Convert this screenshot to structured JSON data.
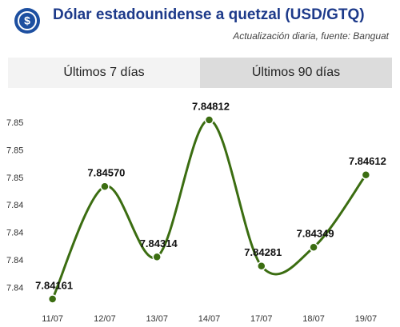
{
  "header": {
    "title": "Dólar estadounidense a quetzal (USD/GTQ)",
    "subtitle": "Actualización diaria, fuente: Banguat"
  },
  "tabs": [
    "Últimos 7 días",
    "Últimos 90 días"
  ],
  "chart_data": {
    "type": "line",
    "categories": [
      "11/07",
      "12/07",
      "13/07",
      "14/07",
      "17/07",
      "18/07",
      "19/07"
    ],
    "values": [
      7.84161,
      7.8457,
      7.84314,
      7.84812,
      7.84281,
      7.84349,
      7.84612
    ],
    "value_labels": [
      "7.84161",
      "7.84570",
      "7.84314",
      "7.84812",
      "7.84281",
      "7.84349",
      "7.84612"
    ],
    "color": "#3b6d11",
    "ylim": [
      7.841,
      7.8487
    ],
    "yticks": [
      {
        "value": 7.848,
        "label": "7.85"
      },
      {
        "value": 7.847,
        "label": "7.85"
      },
      {
        "value": 7.846,
        "label": "7.85"
      },
      {
        "value": 7.845,
        "label": "7.84"
      },
      {
        "value": 7.844,
        "label": "7.84"
      },
      {
        "value": 7.843,
        "label": "7.84"
      },
      {
        "value": 7.842,
        "label": "7.84"
      }
    ]
  }
}
